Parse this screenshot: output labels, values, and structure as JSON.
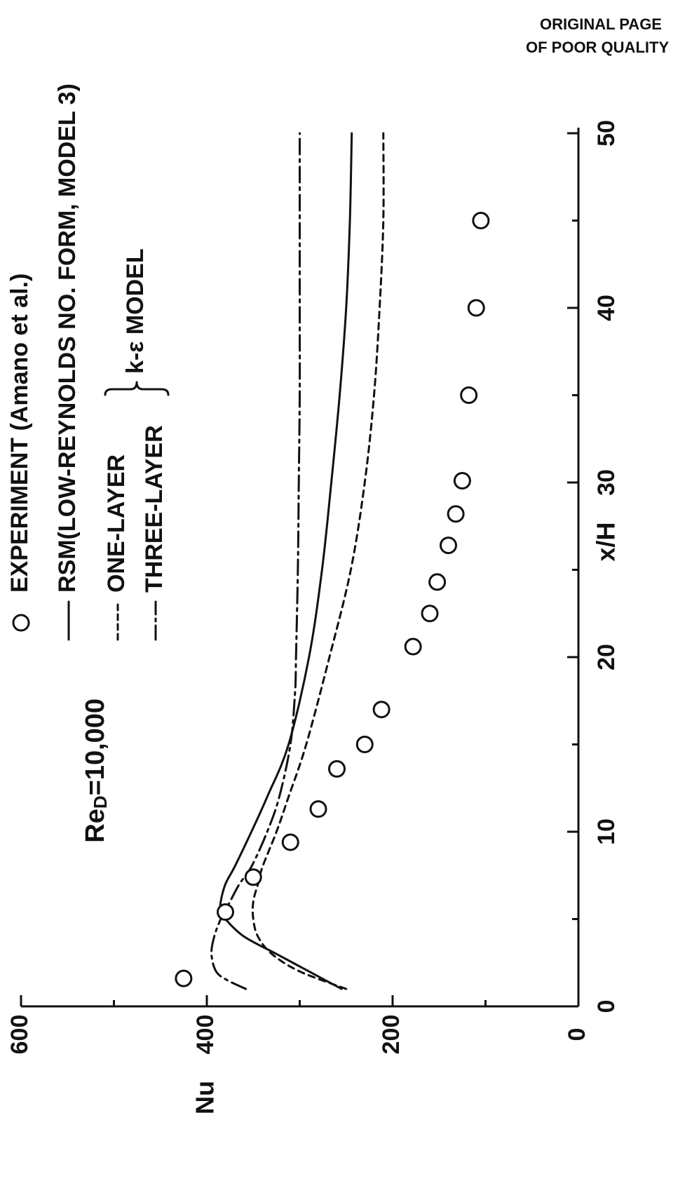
{
  "page": {
    "stamp_line1": "ORIGINAL PAGE",
    "stamp_line2": "OF POOR QUALITY"
  },
  "chart_data": {
    "type": "line",
    "title": "",
    "xlabel": "x/H",
    "ylabel": "Nu",
    "xlim": [
      0,
      50
    ],
    "ylim": [
      0,
      600
    ],
    "x_ticks": [
      "0",
      "10",
      "20",
      "30",
      "40",
      "50"
    ],
    "y_ticks": [
      "0",
      "200",
      "400",
      "600"
    ],
    "x_tick_values": [
      0,
      10,
      20,
      30,
      40,
      50
    ],
    "y_tick_values": [
      0,
      200,
      400,
      600
    ],
    "annotation": {
      "re_main": "Re",
      "re_sub": "D",
      "re_rest": "=10,000"
    },
    "legend": {
      "placement": "top",
      "experiment_label": "EXPERIMENT (Amano et al.)",
      "rsm_label": "RSM(LOW-REYNOLDS NO. FORM, MODEL 3)",
      "one_layer_label": "ONE-LAYER",
      "three_layer_label": "THREE-LAYER",
      "ke_group_label": "k-ε MODEL"
    },
    "series": [
      {
        "key": "experiment",
        "kind": "scatter",
        "x": [
          1.6,
          5.4,
          7.4,
          9.4,
          11.3,
          13.6,
          15.0,
          17.0,
          20.6,
          22.5,
          24.3,
          26.4,
          28.2,
          30.1,
          35.0,
          40.0,
          45.0
        ],
        "y": [
          425,
          380,
          350,
          310,
          280,
          260,
          230,
          212,
          178,
          160,
          152,
          140,
          132,
          125,
          118,
          110,
          105
        ]
      },
      {
        "key": "rsm",
        "kind": "line",
        "dash": "solid",
        "x": [
          1.0,
          2.0,
          3.0,
          4.0,
          5.0,
          5.5,
          6.0,
          7.0,
          8.0,
          10.0,
          12.0,
          15.0,
          20.0,
          25.0,
          30.0,
          35.0,
          40.0,
          45.0,
          50.0
        ],
        "y": [
          255,
          290,
          325,
          360,
          380,
          385,
          385,
          380,
          370,
          352,
          335,
          312,
          290,
          276,
          266,
          257,
          250,
          246,
          244
        ]
      },
      {
        "key": "one_layer",
        "kind": "line",
        "dash": "dashed",
        "x": [
          1.0,
          2.0,
          3.0,
          4.0,
          5.0,
          6.0,
          7.0,
          8.0,
          10.0,
          12.0,
          15.0,
          20.0,
          25.0,
          30.0,
          35.0,
          40.0,
          45.0,
          50.0
        ],
        "y": [
          250,
          300,
          330,
          345,
          350,
          350,
          345,
          340,
          325,
          312,
          293,
          268,
          245,
          230,
          220,
          214,
          210,
          210
        ]
      },
      {
        "key": "three_layer",
        "kind": "line",
        "dash": "dashdot",
        "x": [
          1.0,
          1.5,
          2.0,
          3.0,
          4.0,
          5.0,
          6.0,
          7.0,
          8.0,
          10.0,
          12.0,
          15.0,
          18.0,
          20.0,
          25.0,
          30.0,
          35.0,
          40.0,
          45.0,
          50.0
        ],
        "y": [
          358,
          378,
          390,
          395,
          392,
          385,
          375,
          365,
          352,
          335,
          322,
          310,
          305,
          304,
          302,
          301,
          300,
          300,
          300,
          300
        ]
      }
    ]
  }
}
